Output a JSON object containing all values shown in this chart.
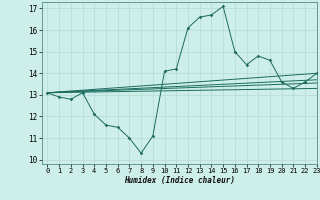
{
  "xlabel": "Humidex (Indice chaleur)",
  "xlim": [
    -0.5,
    23
  ],
  "ylim": [
    9.8,
    17.3
  ],
  "yticks": [
    10,
    11,
    12,
    13,
    14,
    15,
    16,
    17
  ],
  "xticks": [
    0,
    1,
    2,
    3,
    4,
    5,
    6,
    7,
    8,
    9,
    10,
    11,
    12,
    13,
    14,
    15,
    16,
    17,
    18,
    19,
    20,
    21,
    22,
    23
  ],
  "bg_color": "#ceeee9",
  "line_color": "#1a6b5e",
  "grid_color": "#b8ddd8",
  "series": [
    {
      "x": [
        0,
        1,
        2,
        3,
        4,
        5,
        6,
        7,
        8,
        9,
        10,
        11,
        12,
        13,
        14,
        15,
        16,
        17,
        18,
        19,
        20,
        21,
        22,
        23
      ],
      "y": [
        13.1,
        12.9,
        12.8,
        13.1,
        12.1,
        11.6,
        11.5,
        11.0,
        10.3,
        11.1,
        14.1,
        14.2,
        16.1,
        16.6,
        16.7,
        17.1,
        15.0,
        14.4,
        14.8,
        14.6,
        13.6,
        13.3,
        13.6,
        14.0
      ],
      "marker": "D",
      "markersize": 1.8,
      "linewidth": 0.7
    },
    {
      "x": [
        0,
        23
      ],
      "y": [
        13.1,
        14.0
      ],
      "marker": null,
      "markersize": 0,
      "linewidth": 0.7
    },
    {
      "x": [
        0,
        23
      ],
      "y": [
        13.1,
        13.7
      ],
      "marker": null,
      "markersize": 0,
      "linewidth": 0.7
    },
    {
      "x": [
        0,
        23
      ],
      "y": [
        13.1,
        13.55
      ],
      "marker": null,
      "markersize": 0,
      "linewidth": 0.7
    },
    {
      "x": [
        0,
        23
      ],
      "y": [
        13.1,
        13.3
      ],
      "marker": null,
      "markersize": 0,
      "linewidth": 0.7
    }
  ]
}
